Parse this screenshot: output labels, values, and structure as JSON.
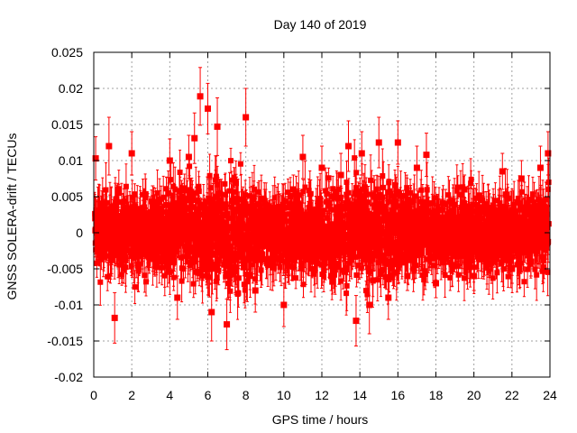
{
  "chart_data": {
    "type": "scatter",
    "title": "Day 140 of 2019",
    "xlabel": "GPS time / hours",
    "ylabel": "GNSS SOLERA-drift / TECUs",
    "xlim": [
      0,
      24
    ],
    "ylim": [
      -0.02,
      0.025
    ],
    "xticks": [
      0,
      2,
      4,
      6,
      8,
      10,
      12,
      14,
      16,
      18,
      20,
      22,
      24
    ],
    "xtick_labels": [
      "0",
      "2",
      "4",
      "6",
      "8",
      "10",
      "12",
      "14",
      "16",
      "18",
      "20",
      "22",
      "24"
    ],
    "yticks": [
      -0.02,
      -0.015,
      -0.01,
      -0.005,
      0,
      0.005,
      0.01,
      0.015,
      0.02,
      0.025
    ],
    "ytick_labels": [
      "-0.02",
      "-0.015",
      "-0.01",
      "-0.005",
      "0",
      "0.005",
      "0.01",
      "0.015",
      "0.02",
      "0.025"
    ],
    "grid": true,
    "marker": "square",
    "error_bars": true,
    "series_color": "#ff0000",
    "series": [
      {
        "name": "SOLERA drift",
        "x": [
          0.1,
          0.5,
          0.8,
          1.1,
          1.5,
          2.0,
          2.5,
          3.1,
          3.6,
          4.0,
          4.4,
          5.0,
          5.3,
          5.6,
          5.8,
          6.0,
          6.2,
          6.5,
          7.0,
          7.5,
          8.0,
          8.5,
          9.0,
          9.5,
          10.0,
          10.5,
          11.0,
          11.5,
          12.0,
          12.5,
          13.0,
          13.4,
          13.8,
          14.1,
          14.5,
          15.0,
          15.5,
          16.0,
          16.5,
          17.0,
          17.5,
          18.0,
          18.5,
          19.0,
          19.5,
          20.0,
          20.5,
          21.0,
          21.5,
          22.0,
          22.5,
          23.0,
          23.5,
          23.9
        ],
        "y": [
          0.0103,
          0.001,
          0.012,
          -0.0118,
          0.002,
          0.011,
          -0.003,
          0.004,
          -0.004,
          0.01,
          -0.009,
          0.0105,
          0.0131,
          0.0189,
          0.001,
          0.0172,
          -0.011,
          0.0147,
          -0.0127,
          0.003,
          0.016,
          -0.008,
          0.004,
          -0.003,
          -0.01,
          0.006,
          0.0105,
          -0.004,
          0.009,
          -0.006,
          0.008,
          0.012,
          -0.0122,
          0.011,
          -0.01,
          0.0125,
          -0.009,
          0.0125,
          -0.006,
          0.009,
          0.0108,
          -0.007,
          0.004,
          -0.003,
          0.006,
          -0.006,
          0.003,
          -0.004,
          0.0085,
          -0.005,
          0.0075,
          -0.004,
          0.009,
          0.011
        ],
        "y_error": [
          0.003,
          0.002,
          0.004,
          0.0035,
          0.002,
          0.003,
          0.002,
          0.0025,
          0.002,
          0.003,
          0.003,
          0.003,
          0.0035,
          0.004,
          0.002,
          0.0035,
          0.004,
          0.004,
          0.0035,
          0.002,
          0.004,
          0.003,
          0.002,
          0.002,
          0.003,
          0.002,
          0.003,
          0.002,
          0.003,
          0.002,
          0.003,
          0.0035,
          0.0035,
          0.003,
          0.004,
          0.0035,
          0.003,
          0.003,
          0.002,
          0.003,
          0.003,
          0.002,
          0.002,
          0.002,
          0.002,
          0.002,
          0.002,
          0.002,
          0.0025,
          0.002,
          0.0025,
          0.002,
          0.003,
          0.003
        ]
      }
    ]
  }
}
